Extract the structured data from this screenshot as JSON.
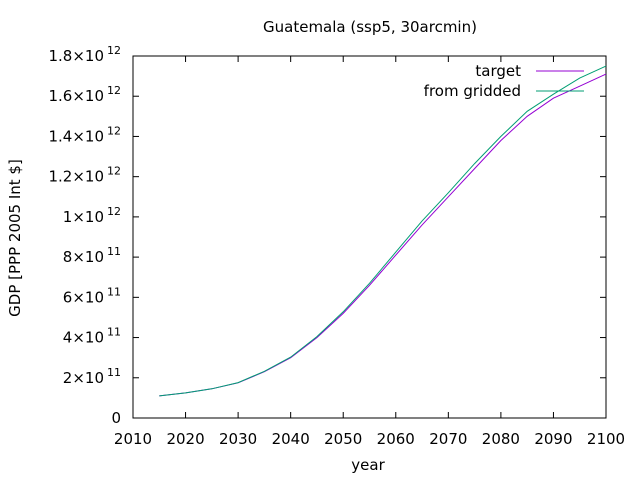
{
  "chart_data": {
    "type": "line",
    "title": "Guatemala (ssp5, 30arcmin)",
    "xlabel": "year",
    "ylabel": "GDP [PPP 2005 Int $]",
    "xlim": [
      2010,
      2100
    ],
    "ylim": [
      0,
      1800000000000.0
    ],
    "grid": false,
    "legend_position": "top-right",
    "x_ticks": [
      {
        "value": 2010,
        "label": "2010"
      },
      {
        "value": 2020,
        "label": "2020"
      },
      {
        "value": 2030,
        "label": "2030"
      },
      {
        "value": 2040,
        "label": "2040"
      },
      {
        "value": 2050,
        "label": "2050"
      },
      {
        "value": 2060,
        "label": "2060"
      },
      {
        "value": 2070,
        "label": "2070"
      },
      {
        "value": 2080,
        "label": "2080"
      },
      {
        "value": 2090,
        "label": "2090"
      },
      {
        "value": 2100,
        "label": "2100"
      }
    ],
    "y_ticks": [
      {
        "value": 0,
        "mant": "0",
        "exp": ""
      },
      {
        "value": 200000000000.0,
        "mant": "2×10",
        "exp": "11"
      },
      {
        "value": 400000000000.0,
        "mant": "4×10",
        "exp": "11"
      },
      {
        "value": 600000000000.0,
        "mant": "6×10",
        "exp": "11"
      },
      {
        "value": 800000000000.0,
        "mant": "8×10",
        "exp": "11"
      },
      {
        "value": 1000000000000.0,
        "mant": "1×10",
        "exp": "12"
      },
      {
        "value": 1200000000000.0,
        "mant": "1.2×10",
        "exp": "12"
      },
      {
        "value": 1400000000000.0,
        "mant": "1.4×10",
        "exp": "12"
      },
      {
        "value": 1600000000000.0,
        "mant": "1.6×10",
        "exp": "12"
      },
      {
        "value": 1800000000000.0,
        "mant": "1.8×10",
        "exp": "12"
      }
    ],
    "series": [
      {
        "name": "target",
        "color": "#9400d3",
        "x": [
          2015,
          2020,
          2025,
          2030,
          2035,
          2040,
          2045,
          2050,
          2055,
          2060,
          2065,
          2070,
          2075,
          2080,
          2085,
          2090,
          2095,
          2100
        ],
        "y": [
          110000000000.0,
          125000000000.0,
          145000000000.0,
          175000000000.0,
          230000000000.0,
          300000000000.0,
          400000000000.0,
          520000000000.0,
          660000000000.0,
          810000000000.0,
          960000000000.0,
          1100000000000.0,
          1240000000000.0,
          1380000000000.0,
          1500000000000.0,
          1590000000000.0,
          1650000000000.0,
          1710000000000.0
        ]
      },
      {
        "name": "from gridded",
        "color": "#009e73",
        "x": [
          2015,
          2020,
          2025,
          2030,
          2035,
          2040,
          2045,
          2050,
          2055,
          2060,
          2065,
          2070,
          2075,
          2080,
          2085,
          2090,
          2095,
          2100
        ],
        "y": [
          110000000000.0,
          125000000000.0,
          145000000000.0,
          176000000000.0,
          232000000000.0,
          303000000000.0,
          405000000000.0,
          528000000000.0,
          670000000000.0,
          825000000000.0,
          980000000000.0,
          1120000000000.0,
          1265000000000.0,
          1400000000000.0,
          1525000000000.0,
          1610000000000.0,
          1690000000000.0,
          1750000000000.0
        ]
      }
    ]
  }
}
